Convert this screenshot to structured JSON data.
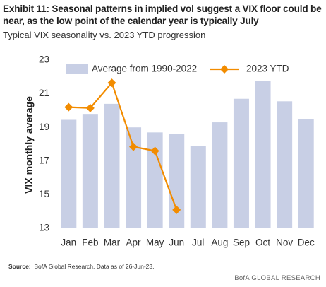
{
  "chart_data": {
    "type": "bar",
    "title": "Exhibit 11: Seasonal patterns in implied vol suggest a VIX floor could be near, as the low point of the calendar year is typically July",
    "subtitle": "Typical VIX seasonality vs. 2023 YTD progression",
    "y_label": "VIX monthly average",
    "categories": [
      "Jan",
      "Feb",
      "Mar",
      "Apr",
      "May",
      "Jun",
      "Jul",
      "Aug",
      "Sep",
      "Oct",
      "Nov",
      "Dec"
    ],
    "series": [
      {
        "name": "Average from 1990-2022",
        "type": "bar",
        "color": "#c8cfe5",
        "values": [
          19.45,
          19.8,
          20.4,
          19.0,
          18.7,
          18.6,
          17.9,
          19.3,
          20.7,
          21.75,
          20.55,
          19.5
        ]
      },
      {
        "name": "2023 YTD",
        "type": "line",
        "color": "#f28c00",
        "values": [
          20.2,
          20.15,
          21.65,
          17.85,
          17.6,
          14.1,
          null,
          null,
          null,
          null,
          null,
          null
        ]
      }
    ],
    "ylim": [
      13,
      23
    ],
    "yticks": [
      13,
      15,
      17,
      19,
      21,
      23
    ],
    "grid": false,
    "source_label": "Source:",
    "source": "BofA Global Research.  Data as of 26-Jun-23.",
    "footer": "BofA GLOBAL RESEARCH"
  }
}
